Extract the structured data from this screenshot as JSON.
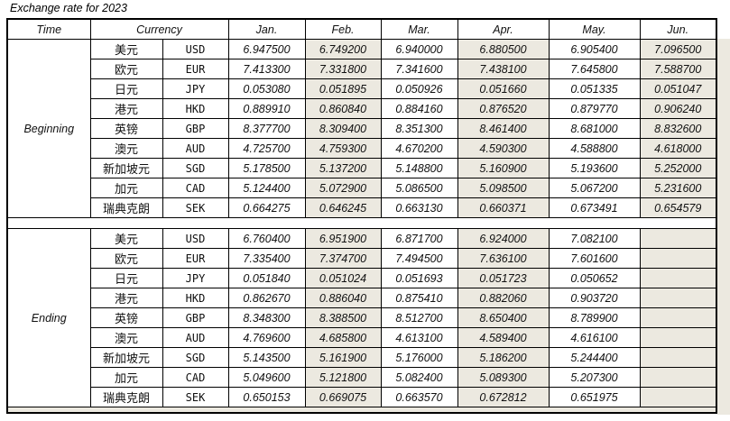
{
  "title": "Exchange rate for 2023",
  "headers": {
    "time": "Time",
    "currency": "Currency",
    "months": [
      "Jan.",
      "Feb.",
      "Mar.",
      "Apr.",
      "May.",
      "Jun."
    ]
  },
  "currencies": [
    {
      "cn": "美元",
      "code": "USD"
    },
    {
      "cn": "欧元",
      "code": "EUR"
    },
    {
      "cn": "日元",
      "code": "JPY"
    },
    {
      "cn": "港元",
      "code": "HKD"
    },
    {
      "cn": "英镑",
      "code": "GBP"
    },
    {
      "cn": "澳元",
      "code": "AUD"
    },
    {
      "cn": "新加坡元",
      "code": "SGD"
    },
    {
      "cn": "加元",
      "code": "CAD"
    },
    {
      "cn": "瑞典克朗",
      "code": "SEK"
    }
  ],
  "sections": [
    {
      "label": "Beginning",
      "rows": [
        [
          "6.947500",
          "6.749200",
          "6.940000",
          "6.880500",
          "6.905400",
          "7.096500"
        ],
        [
          "7.413300",
          "7.331800",
          "7.341600",
          "7.438100",
          "7.645800",
          "7.588700"
        ],
        [
          "0.053080",
          "0.051895",
          "0.050926",
          "0.051660",
          "0.051335",
          "0.051047"
        ],
        [
          "0.889910",
          "0.860840",
          "0.884160",
          "0.876520",
          "0.879770",
          "0.906240"
        ],
        [
          "8.377700",
          "8.309400",
          "8.351300",
          "8.461400",
          "8.681000",
          "8.832600"
        ],
        [
          "4.725700",
          "4.759300",
          "4.670200",
          "4.590300",
          "4.588800",
          "4.618000"
        ],
        [
          "5.178500",
          "5.137200",
          "5.148800",
          "5.160900",
          "5.193600",
          "5.252000"
        ],
        [
          "5.124400",
          "5.072900",
          "5.086500",
          "5.098500",
          "5.067200",
          "5.231600"
        ],
        [
          "0.664275",
          "0.646245",
          "0.663130",
          "0.660371",
          "0.673491",
          "0.654579"
        ]
      ]
    },
    {
      "label": "Ending",
      "rows": [
        [
          "6.760400",
          "6.951900",
          "6.871700",
          "6.924000",
          "7.082100",
          ""
        ],
        [
          "7.335400",
          "7.374700",
          "7.494500",
          "7.636100",
          "7.601600",
          ""
        ],
        [
          "0.051840",
          "0.051024",
          "0.051693",
          "0.051723",
          "0.050652",
          ""
        ],
        [
          "0.862670",
          "0.886040",
          "0.875410",
          "0.882060",
          "0.903720",
          ""
        ],
        [
          "8.348300",
          "8.388500",
          "8.512700",
          "8.650400",
          "8.789900",
          ""
        ],
        [
          "4.769600",
          "4.685800",
          "4.613100",
          "4.589400",
          "4.616100",
          ""
        ],
        [
          "5.143500",
          "5.161900",
          "5.176000",
          "5.186200",
          "5.244400",
          ""
        ],
        [
          "5.049600",
          "5.121800",
          "5.082400",
          "5.089300",
          "5.207300",
          ""
        ],
        [
          "0.650153",
          "0.669075",
          "0.663570",
          "0.672812",
          "0.651975",
          ""
        ]
      ]
    }
  ],
  "colors": {
    "shade": "#ECE9E0",
    "border": "#000000"
  }
}
